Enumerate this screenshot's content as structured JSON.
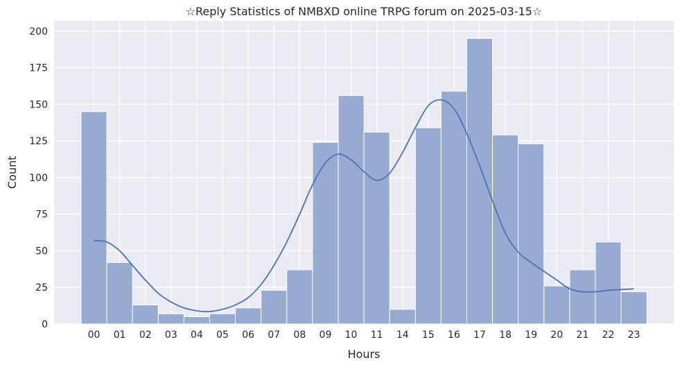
{
  "chart_data": {
    "type": "bar",
    "title": "☆Reply Statistics of NMBXD online TRPG forum on 2025-03-15☆",
    "xlabel": "Hours",
    "ylabel": "Count",
    "categories": [
      "00",
      "01",
      "02",
      "03",
      "04",
      "05",
      "06",
      "07",
      "08",
      "09",
      "10",
      "11",
      "14",
      "15",
      "16",
      "17",
      "18",
      "19",
      "20",
      "21",
      "22",
      "23"
    ],
    "values": [
      145,
      42,
      13,
      7,
      5,
      7,
      11,
      23,
      37,
      124,
      156,
      131,
      10,
      134,
      159,
      195,
      129,
      123,
      26,
      37,
      56,
      22
    ],
    "ylim": [
      0,
      207
    ],
    "yticks": [
      "0",
      "25",
      "50",
      "75",
      "100",
      "125",
      "150",
      "175",
      "200"
    ],
    "kde_line": {
      "x_positions": [
        0.0,
        0.5,
        1.0,
        1.5,
        2.0,
        2.5,
        3.0,
        3.5,
        4.0,
        4.5,
        5.0,
        5.5,
        6.0,
        6.5,
        7.0,
        7.5,
        8.0,
        8.5,
        9.0,
        9.5,
        10.0,
        10.5,
        11.0,
        11.5,
        12.0,
        12.5,
        13.0,
        13.5,
        14.0,
        14.5,
        15.0,
        15.5,
        16.0,
        16.5,
        17.0,
        17.5,
        18.0,
        18.5,
        19.0,
        19.5,
        20.0,
        20.5,
        21.0
      ],
      "values": [
        57,
        56,
        50,
        40,
        30,
        21,
        15,
        11,
        9,
        8.5,
        10,
        13,
        18,
        27,
        40,
        56,
        75,
        95,
        110,
        116,
        112,
        104,
        98,
        103,
        117,
        134,
        149,
        153,
        147,
        130,
        108,
        84,
        62,
        49,
        42,
        36,
        30,
        24,
        22,
        22,
        23,
        23.5,
        24
      ],
      "x_start_category": 0,
      "x_end_category": 21
    },
    "grid": true,
    "colors": {
      "bar_fill": "#97aad0",
      "bar_stroke": "#ffffff",
      "line": "#4c72b0",
      "plot_bg": "#eaeaf2",
      "grid": "#ffffff"
    }
  }
}
